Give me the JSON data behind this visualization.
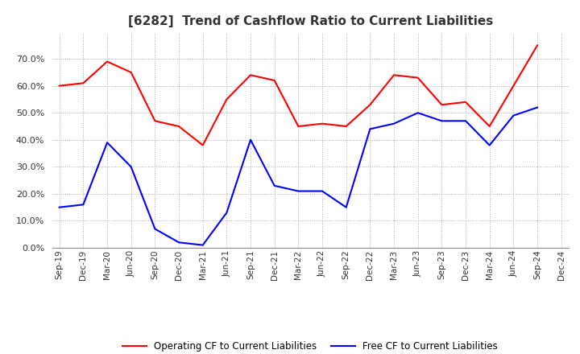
{
  "title": "[6282]  Trend of Cashflow Ratio to Current Liabilities",
  "x_labels": [
    "Sep-19",
    "Dec-19",
    "Mar-20",
    "Jun-20",
    "Sep-20",
    "Dec-20",
    "Mar-21",
    "Jun-21",
    "Sep-21",
    "Dec-21",
    "Mar-22",
    "Jun-22",
    "Sep-22",
    "Dec-22",
    "Mar-23",
    "Jun-23",
    "Sep-23",
    "Dec-23",
    "Mar-24",
    "Jun-24",
    "Sep-24",
    "Dec-24"
  ],
  "operating_cf": [
    0.6,
    0.61,
    0.69,
    0.65,
    0.47,
    0.45,
    0.38,
    0.55,
    0.64,
    0.62,
    0.45,
    0.46,
    0.45,
    0.53,
    0.64,
    0.63,
    0.53,
    0.54,
    0.45,
    0.6,
    0.75,
    null
  ],
  "free_cf": [
    0.15,
    0.16,
    0.39,
    0.3,
    0.07,
    0.02,
    0.01,
    0.13,
    0.4,
    0.23,
    0.21,
    0.21,
    0.15,
    0.44,
    0.46,
    0.5,
    0.47,
    0.47,
    0.38,
    0.49,
    0.52,
    null
  ],
  "operating_color": "#FF0000",
  "free_color": "#0000FF",
  "ylim": [
    0.0,
    0.8
  ],
  "yticks": [
    0.0,
    0.1,
    0.2,
    0.3,
    0.4,
    0.5,
    0.6,
    0.7
  ],
  "legend_labels": [
    "Operating CF to Current Liabilities",
    "Free CF to Current Liabilities"
  ],
  "background_color": "#ffffff",
  "title_color": "#333333",
  "grid_color": "#aaaaaa"
}
